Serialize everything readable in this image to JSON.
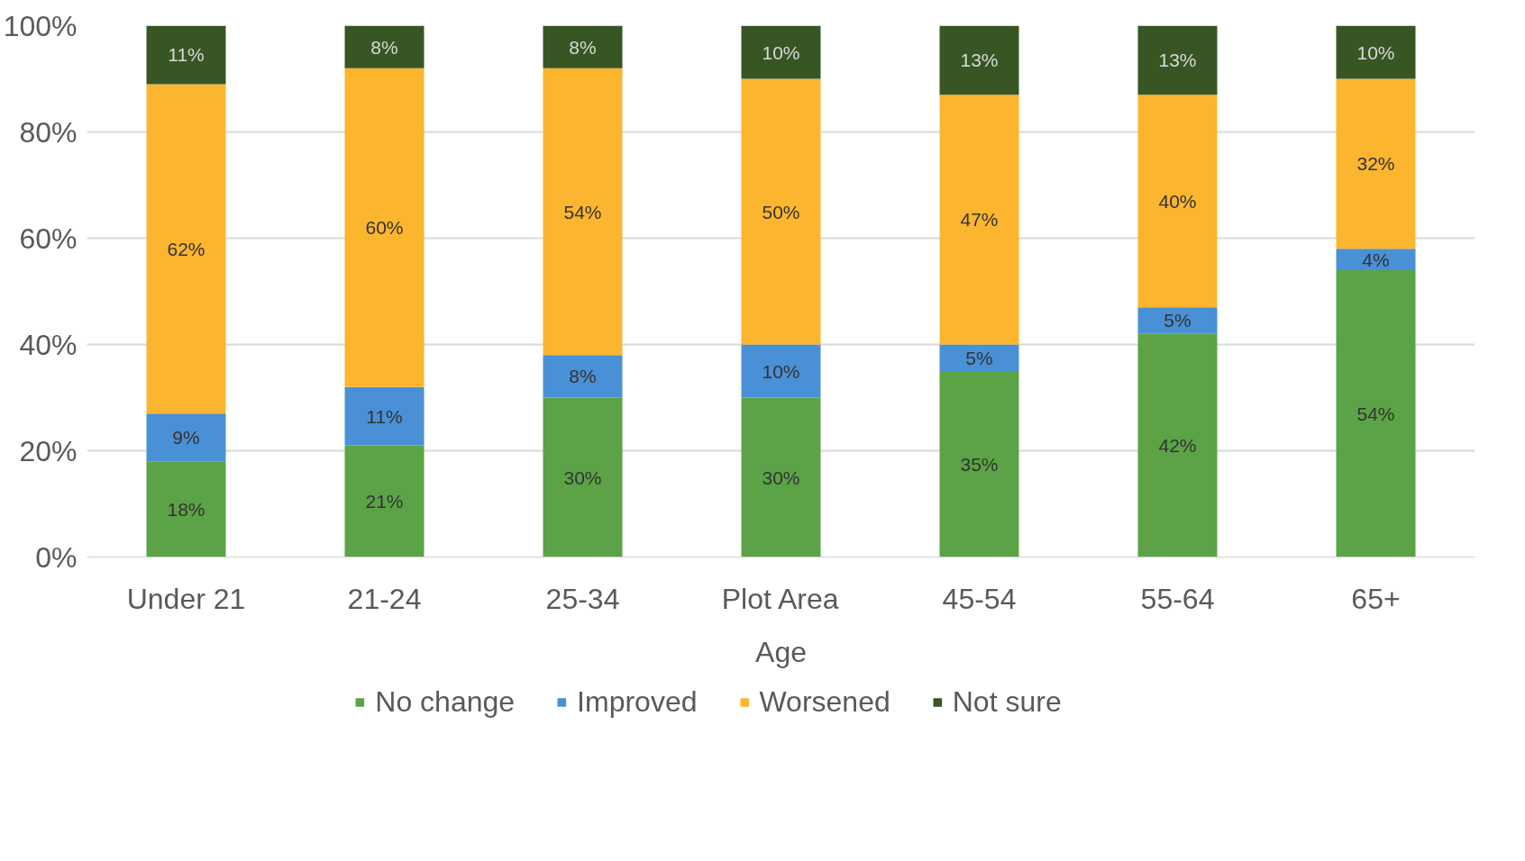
{
  "chart_data": {
    "type": "bar",
    "stacked": true,
    "xlabel": "Age",
    "categories": [
      "Under 21",
      "21-24",
      "25-34",
      null,
      "45-54",
      "55-64",
      "65+"
    ],
    "series": [
      {
        "name": "No change",
        "color": "#5ba346",
        "values": [
          18,
          21,
          30,
          30,
          35,
          42,
          54
        ],
        "value_labels": [
          "18%",
          "21%",
          "30%",
          "30%",
          "35%",
          "42%",
          "54%"
        ]
      },
      {
        "name": "Improved",
        "color": "#4a90d6",
        "values": [
          9,
          11,
          8,
          10,
          5,
          5,
          4
        ],
        "value_labels": [
          "9%",
          "11%",
          "8%",
          "10%",
          "5%",
          "5%",
          "4%"
        ]
      },
      {
        "name": "Worsened",
        "color": "#fbb52f",
        "values": [
          62,
          60,
          54,
          50,
          47,
          40,
          32
        ],
        "value_labels": [
          "62%",
          "60%",
          "54%",
          "50%",
          "47%",
          "40%",
          "32%"
        ]
      },
      {
        "name": "Not sure",
        "color": "#375623",
        "values": [
          11,
          8,
          8,
          10,
          13,
          13,
          10
        ],
        "value_labels": [
          "11%",
          "8%",
          "8%",
          "10%",
          "13%",
          "13%",
          "10%"
        ]
      }
    ],
    "ylim": [
      0,
      100
    ],
    "yticks": [
      {
        "value": 0,
        "label": "0%"
      },
      {
        "value": 20,
        "label": "20%"
      },
      {
        "value": 40,
        "label": "40%"
      },
      {
        "value": 60,
        "label": "60%"
      },
      {
        "value": 80,
        "label": "80%"
      },
      {
        "value": 100,
        "label": "100%"
      }
    ],
    "grid": "y",
    "legend": "bottom",
    "annotations": [
      "Plot Area"
    ]
  }
}
